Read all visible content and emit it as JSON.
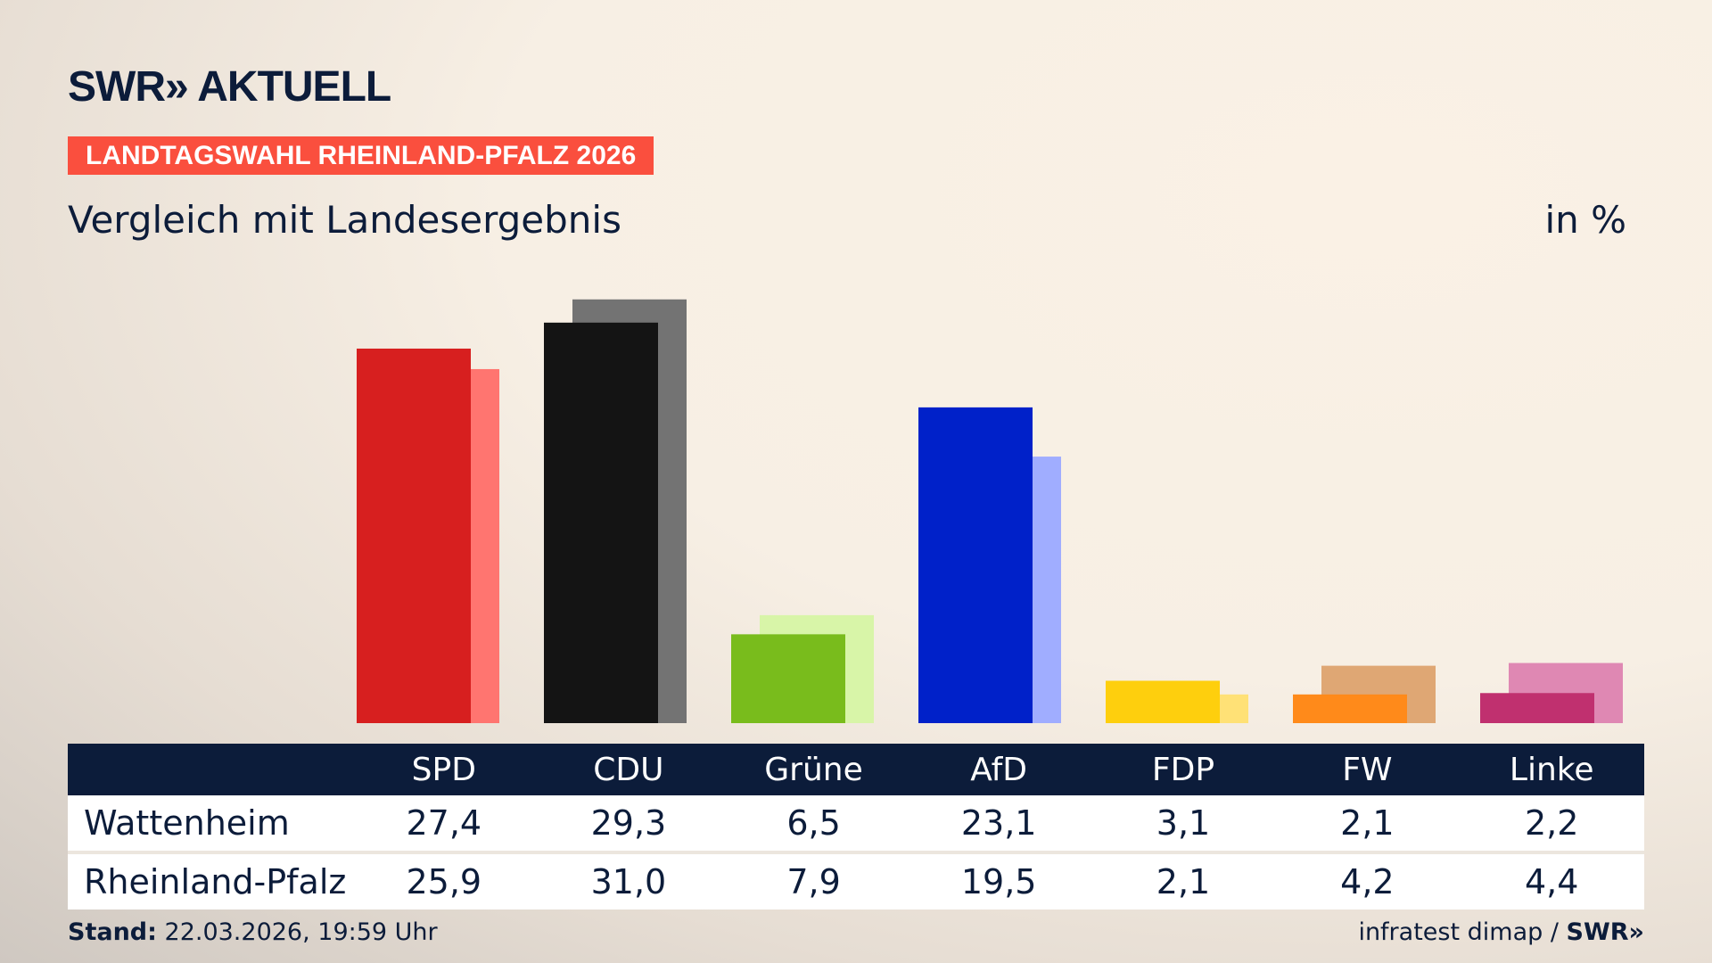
{
  "header": {
    "logo": "SWR» AKTUELL",
    "badge": "LANDTAGSWAHL RHEINLAND-PFALZ 2026",
    "subtitle": "Vergleich mit Landesergebnis",
    "unit": "in %"
  },
  "chart_data": {
    "type": "bar",
    "categories": [
      "SPD",
      "CDU",
      "Grüne",
      "AfD",
      "FDP",
      "FW",
      "Linke"
    ],
    "series": [
      {
        "name": "Wattenheim",
        "values": [
          27.4,
          29.3,
          6.5,
          23.1,
          3.1,
          2.1,
          2.2
        ],
        "colors": [
          "#d71f1f",
          "#141414",
          "#79bc1c",
          "#0021c9",
          "#fecf0d",
          "#ff8a1a",
          "#c0306f"
        ]
      },
      {
        "name": "Rheinland-Pfalz",
        "values": [
          25.9,
          31.0,
          7.9,
          19.5,
          2.1,
          4.2,
          4.4
        ],
        "colors": [
          "#ff7570",
          "#737373",
          "#d8f5a8",
          "#a0adff",
          "#ffe176",
          "#dfa774",
          "#df88b3"
        ]
      }
    ],
    "grid": false
  },
  "table": {
    "headers": [
      "SPD",
      "CDU",
      "Grüne",
      "AfD",
      "FDP",
      "FW",
      "Linke"
    ],
    "rows": [
      {
        "label": "Wattenheim",
        "values": [
          "27,4",
          "29,3",
          "6,5",
          "23,1",
          "3,1",
          "2,1",
          "2,2"
        ]
      },
      {
        "label": "Rheinland-Pfalz",
        "values": [
          "25,9",
          "31,0",
          "7,9",
          "19,5",
          "2,1",
          "4,2",
          "4,4"
        ]
      }
    ]
  },
  "footer": {
    "stand_label": "Stand:",
    "stand_value": "22.03.2026, 19:59 Uhr",
    "source": "infratest dimap / ",
    "source_logo": "SWR»"
  }
}
